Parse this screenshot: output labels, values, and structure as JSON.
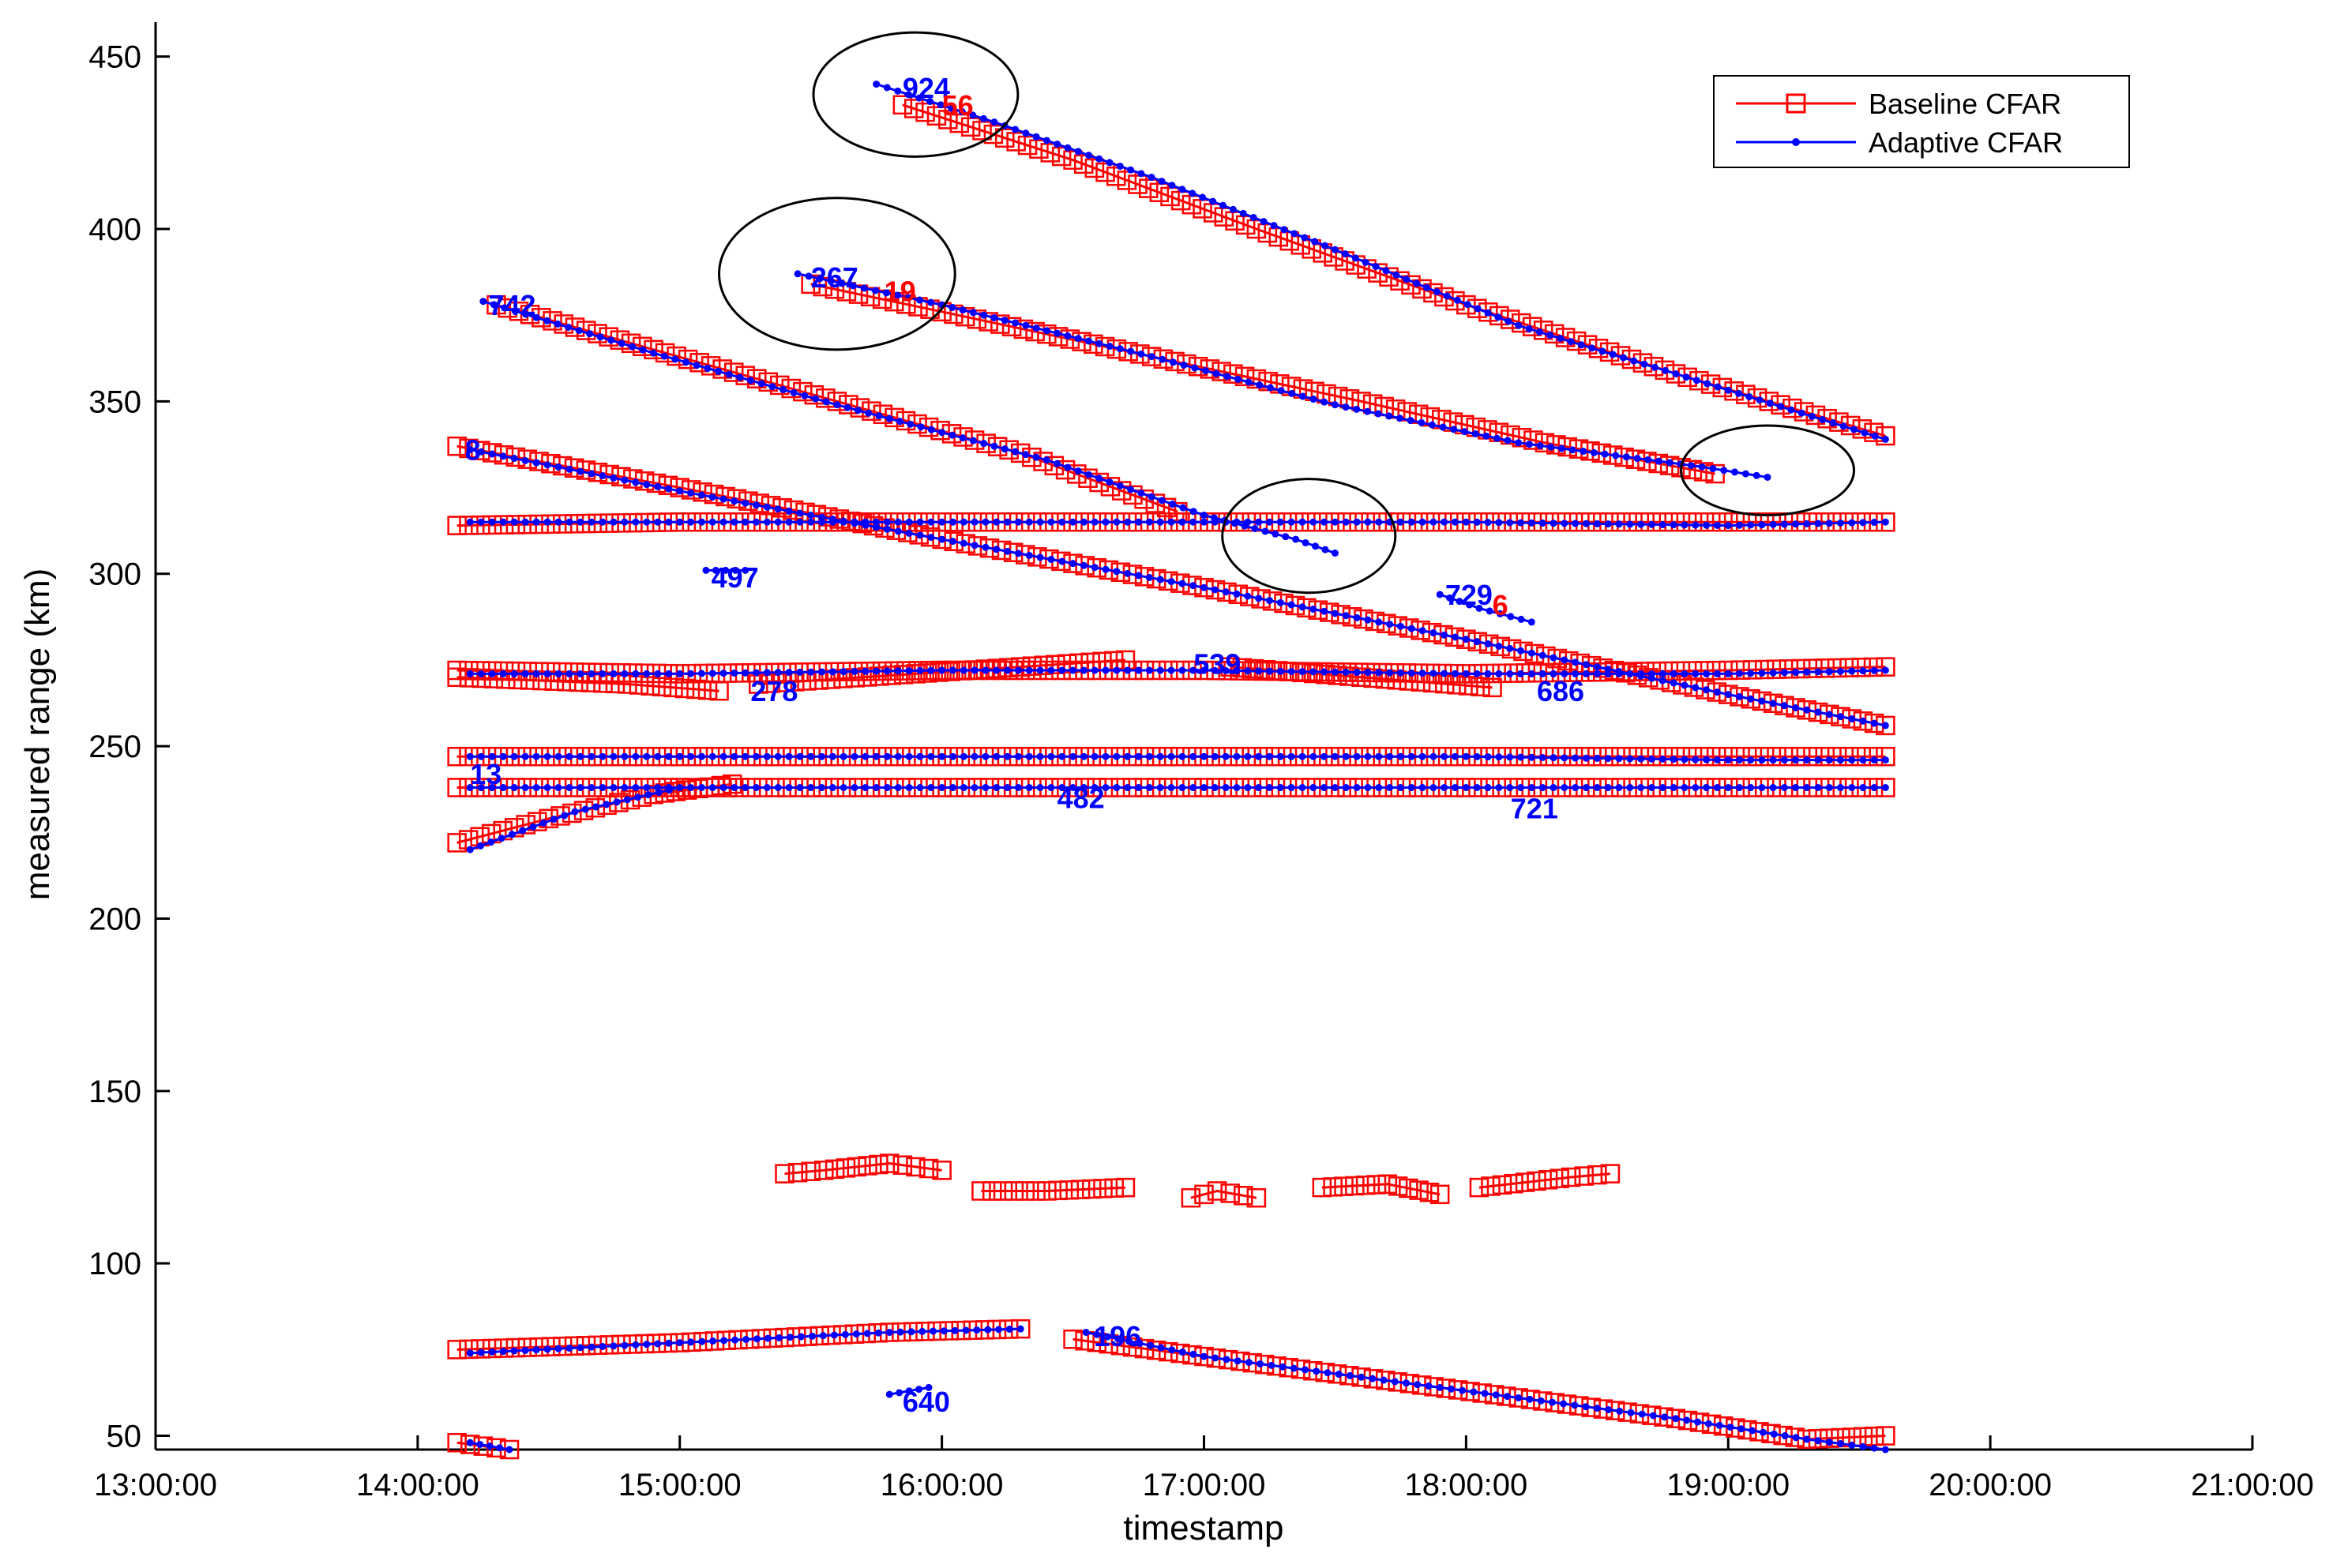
{
  "chart_data": {
    "type": "line",
    "title": "",
    "xlabel": "timestamp",
    "ylabel": "measured range (km)",
    "xlim": [
      13,
      21
    ],
    "ylim": [
      46,
      460
    ],
    "x_ticks": [
      13,
      14,
      15,
      16,
      17,
      18,
      19,
      20,
      21
    ],
    "x_tick_labels": [
      "13:00:00",
      "14:00:00",
      "15:00:00",
      "16:00:00",
      "17:00:00",
      "18:00:00",
      "19:00:00",
      "20:00:00",
      "21:00:00"
    ],
    "y_ticks": [
      50,
      100,
      150,
      200,
      250,
      300,
      350,
      400,
      450
    ],
    "y_tick_labels": [
      "50",
      "100",
      "150",
      "200",
      "250",
      "300",
      "350",
      "400",
      "450"
    ],
    "grid": false,
    "legend_position": "top-right",
    "colors": {
      "baseline": "#ff0000",
      "adaptive": "#0000ff",
      "ellipse": "#000000"
    },
    "legend": [
      {
        "name": "Baseline CFAR",
        "marker": "square",
        "color": "#ff0000"
      },
      {
        "name": "Adaptive CFAR",
        "marker": "dot",
        "color": "#0000ff"
      }
    ],
    "series": [
      {
        "name": "Baseline CFAR",
        "tracks": [
          {
            "x": [
              15.85,
              16.5,
              17.2,
              18.0,
              18.8,
              19.6
            ],
            "y": [
              436,
              420,
              400,
              378,
              358,
              340
            ]
          },
          {
            "x": [
              15.5,
              16.0,
              16.8,
              17.6,
              18.3,
              18.95
            ],
            "y": [
              384,
              376,
              363,
              350,
              338,
              329
            ]
          },
          {
            "x": [
              14.3,
              14.9,
              15.6,
              16.3,
              16.9
            ],
            "y": [
              378,
              365,
              350,
              335,
              318
            ]
          },
          {
            "x": [
              14.15,
              15.0,
              16.0,
              17.0,
              18.0,
              19.0,
              19.6
            ],
            "y": [
              337,
              325,
              310,
              296,
              281,
              265,
              256
            ]
          },
          {
            "x": [
              14.15,
              15.0,
              16.0,
              17.0,
              18.0,
              19.0,
              19.6
            ],
            "y": [
              314,
              315,
              315,
              315,
              315,
              315,
              315
            ]
          },
          {
            "x": [
              14.15,
              15.0,
              16.0,
              17.0,
              18.0,
              19.0,
              19.6
            ],
            "y": [
              272,
              271,
              272,
              272,
              271,
              272,
              273
            ]
          },
          {
            "x": [
              14.15,
              14.8,
              15.15
            ],
            "y": [
              270,
              268,
              266
            ]
          },
          {
            "x": [
              15.3,
              15.9,
              16.7
            ],
            "y": [
              268,
              271,
              275
            ]
          },
          {
            "x": [
              17.1,
              17.6,
              18.1
            ],
            "y": [
              273,
              270,
              267
            ]
          },
          {
            "x": [
              14.15,
              15.0,
              16.0,
              17.0,
              18.0,
              19.0,
              19.6
            ],
            "y": [
              247,
              247,
              247,
              247,
              247,
              247,
              247
            ]
          },
          {
            "x": [
              14.15,
              15.0,
              16.0,
              17.0,
              18.0,
              19.0,
              19.6
            ],
            "y": [
              238,
              238,
              238,
              238,
              238,
              238,
              238
            ]
          },
          {
            "x": [
              14.15,
              14.5,
              14.9,
              15.2
            ],
            "y": [
              222,
              229,
              236,
              239
            ]
          },
          {
            "x": [
              15.4,
              15.55,
              15.8,
              16.0
            ],
            "y": [
              126,
              127,
              129,
              127
            ]
          },
          {
            "x": [
              16.15,
              16.4,
              16.7
            ],
            "y": [
              121,
              121,
              122
            ]
          },
          {
            "x": [
              16.95,
              17.05,
              17.2
            ],
            "y": [
              119,
              121,
              119
            ]
          },
          {
            "x": [
              17.45,
              17.7,
              17.9
            ],
            "y": [
              122,
              123,
              120
            ]
          },
          {
            "x": [
              18.05,
              18.4,
              18.55
            ],
            "y": [
              122,
              125,
              126
            ]
          },
          {
            "x": [
              14.15,
              15.0,
              15.8,
              16.3
            ],
            "y": [
              75,
              77,
              80,
              81
            ]
          },
          {
            "x": [
              16.5,
              17.0,
              17.6,
              18.2,
              18.8,
              19.3,
              19.6
            ],
            "y": [
              78,
              73,
              67,
              61,
              55,
              49,
              50
            ]
          },
          {
            "x": [
              14.15,
              14.25,
              14.35
            ],
            "y": [
              48,
              47,
              46
            ]
          }
        ]
      },
      {
        "name": "Adaptive CFAR",
        "tracks": [
          {
            "x": [
              15.75,
              16.2,
              16.8,
              17.5,
              18.2,
              18.8,
              19.6
            ],
            "y": [
              442,
              431,
              415,
              394,
              372,
              358,
              339
            ]
          },
          {
            "x": [
              15.45,
              16.0,
              16.8,
              17.5,
              18.2,
              18.9,
              19.15
            ],
            "y": [
              387,
              378,
              363,
              349,
              338,
              331,
              328
            ]
          },
          {
            "x": [
              14.25,
              14.9,
              15.6,
              16.4,
              17.0,
              17.35,
              17.5
            ],
            "y": [
              379,
              364,
              349,
              333,
              317,
              310,
              306
            ]
          },
          {
            "x": [
              14.2,
              15.0,
              16.0,
              17.0,
              18.0,
              19.0,
              19.6
            ],
            "y": [
              336,
              324,
              310,
              296,
              281,
              265,
              256
            ]
          },
          {
            "x": [
              14.2,
              15.0,
              16.0,
              17.0,
              18.0,
              19.0,
              19.6
            ],
            "y": [
              315,
              315,
              315,
              315,
              315,
              314,
              315
            ]
          },
          {
            "x": [
              15.1,
              15.25
            ],
            "y": [
              301,
              301
            ]
          },
          {
            "x": [
              17.9,
              18.05,
              18.25
            ],
            "y": [
              294,
              290,
              286
            ]
          },
          {
            "x": [
              14.2,
              15.0,
              16.0,
              17.0,
              18.0,
              19.0,
              19.6
            ],
            "y": [
              271,
              271,
              272,
              272,
              271,
              271,
              272
            ]
          },
          {
            "x": [
              14.2,
              15.0,
              16.0,
              17.0,
              18.0,
              19.0,
              19.6
            ],
            "y": [
              247,
              247,
              247,
              247,
              247,
              246,
              246
            ]
          },
          {
            "x": [
              14.2,
              15.0,
              16.0,
              17.0,
              18.0,
              19.0,
              19.6
            ],
            "y": [
              238,
              238,
              238,
              238,
              238,
              238,
              238
            ]
          },
          {
            "x": [
              14.2,
              14.6,
              15.0
            ],
            "y": [
              220,
              231,
              238
            ]
          },
          {
            "x": [
              14.2,
              15.0,
              15.8,
              16.3
            ],
            "y": [
              74,
              77,
              80,
              81
            ]
          },
          {
            "x": [
              16.55,
              17.0,
              17.6,
              18.2,
              18.8,
              19.3,
              19.6
            ],
            "y": [
              80,
              73,
              67,
              61,
              55,
              49,
              46
            ]
          },
          {
            "x": [
              15.8,
              15.95
            ],
            "y": [
              62,
              64
            ]
          },
          {
            "x": [
              14.2,
              14.35
            ],
            "y": [
              48,
              46
            ]
          }
        ]
      }
    ],
    "ellipses": [
      {
        "cx": 15.9,
        "cy": 439,
        "rx": 0.39,
        "ry": 18
      },
      {
        "cx": 15.6,
        "cy": 387,
        "rx": 0.45,
        "ry": 22
      },
      {
        "cx": 17.4,
        "cy": 311,
        "rx": 0.33,
        "ry": 16.5
      },
      {
        "cx": 19.15,
        "cy": 330,
        "rx": 0.33,
        "ry": 13
      }
    ],
    "annotations": [
      {
        "text": "924",
        "x": 15.85,
        "y": 441,
        "color": "#0000ff"
      },
      {
        "text": "56",
        "x": 16.0,
        "y": 436,
        "color": "#ff0000"
      },
      {
        "text": "267",
        "x": 15.5,
        "y": 386,
        "color": "#0000ff"
      },
      {
        "text": "19",
        "x": 15.78,
        "y": 382,
        "color": "#ff0000"
      },
      {
        "text": "742",
        "x": 14.27,
        "y": 378,
        "color": "#0000ff"
      },
      {
        "text": "8",
        "x": 14.18,
        "y": 336,
        "color": "#0000ff"
      },
      {
        "text": "497",
        "x": 15.12,
        "y": 299,
        "color": "#0000ff"
      },
      {
        "text": "729",
        "x": 17.92,
        "y": 294,
        "color": "#0000ff"
      },
      {
        "text": "6",
        "x": 18.1,
        "y": 291,
        "color": "#ff0000"
      },
      {
        "text": "278",
        "x": 15.27,
        "y": 266,
        "color": "#0000ff"
      },
      {
        "text": "539",
        "x": 16.96,
        "y": 274,
        "color": "#0000ff"
      },
      {
        "text": "686",
        "x": 18.27,
        "y": 266,
        "color": "#0000ff"
      },
      {
        "text": "482",
        "x": 16.44,
        "y": 235,
        "color": "#0000ff"
      },
      {
        "text": "721",
        "x": 18.17,
        "y": 232,
        "color": "#0000ff"
      },
      {
        "text": "13",
        "x": 14.2,
        "y": 242,
        "color": "#0000ff"
      },
      {
        "text": "640",
        "x": 15.85,
        "y": 60,
        "color": "#0000ff"
      },
      {
        "text": "196",
        "x": 16.58,
        "y": 79,
        "color": "#0000ff"
      }
    ]
  }
}
